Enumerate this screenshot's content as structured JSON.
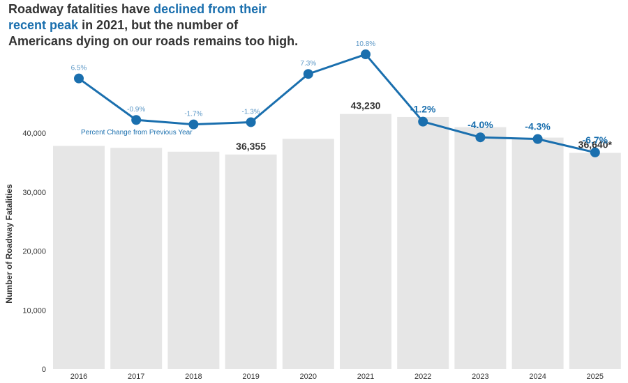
{
  "title": {
    "part1": "Roadway fatalities have ",
    "highlight": "declined from their recent peak",
    "part2": " in 2021, but the number of Americans dying on our roads remains too high."
  },
  "chart_data": {
    "type": "bar",
    "categories": [
      "2016",
      "2017",
      "2018",
      "2019",
      "2020",
      "2021",
      "2022",
      "2023",
      "2024",
      "2025"
    ],
    "series": [
      {
        "values": [
          37806,
          37473,
          36835,
          36355,
          39007,
          43230,
          42721,
          40990,
          39221,
          36640
        ]
      }
    ],
    "line_series": {
      "name": "Percent Change from Previous Year",
      "values": [
        6.5,
        -0.9,
        -1.7,
        -1.3,
        7.3,
        10.8,
        -1.2,
        -4.0,
        -4.3,
        -6.7
      ],
      "labels": [
        "6.5%",
        "-0.9%",
        "-1.7%",
        "-1.3%",
        "7.3%",
        "10.8%",
        "-1.2%",
        "-4.0%",
        "-4.3%",
        "-6.7%"
      ],
      "emphasized_from_index": 6
    },
    "bar_labels": [
      {
        "index": 3,
        "text": "36,355"
      },
      {
        "index": 5,
        "text": "43,230"
      },
      {
        "index": 9,
        "text": "36,640*"
      }
    ],
    "ylabel": "Number  of  Roadway  Fatalities",
    "ylim": [
      0,
      40000
    ],
    "yticks": [
      0,
      10000,
      20000,
      30000,
      40000
    ],
    "ytick_labels": [
      "0",
      "10,000",
      "20,000",
      "30,000",
      "40,000"
    ],
    "grid": false,
    "colors": {
      "bar": "#e6e6e6",
      "line": "#1a6fae",
      "label_light": "#5b97c6",
      "text": "#333333"
    }
  }
}
